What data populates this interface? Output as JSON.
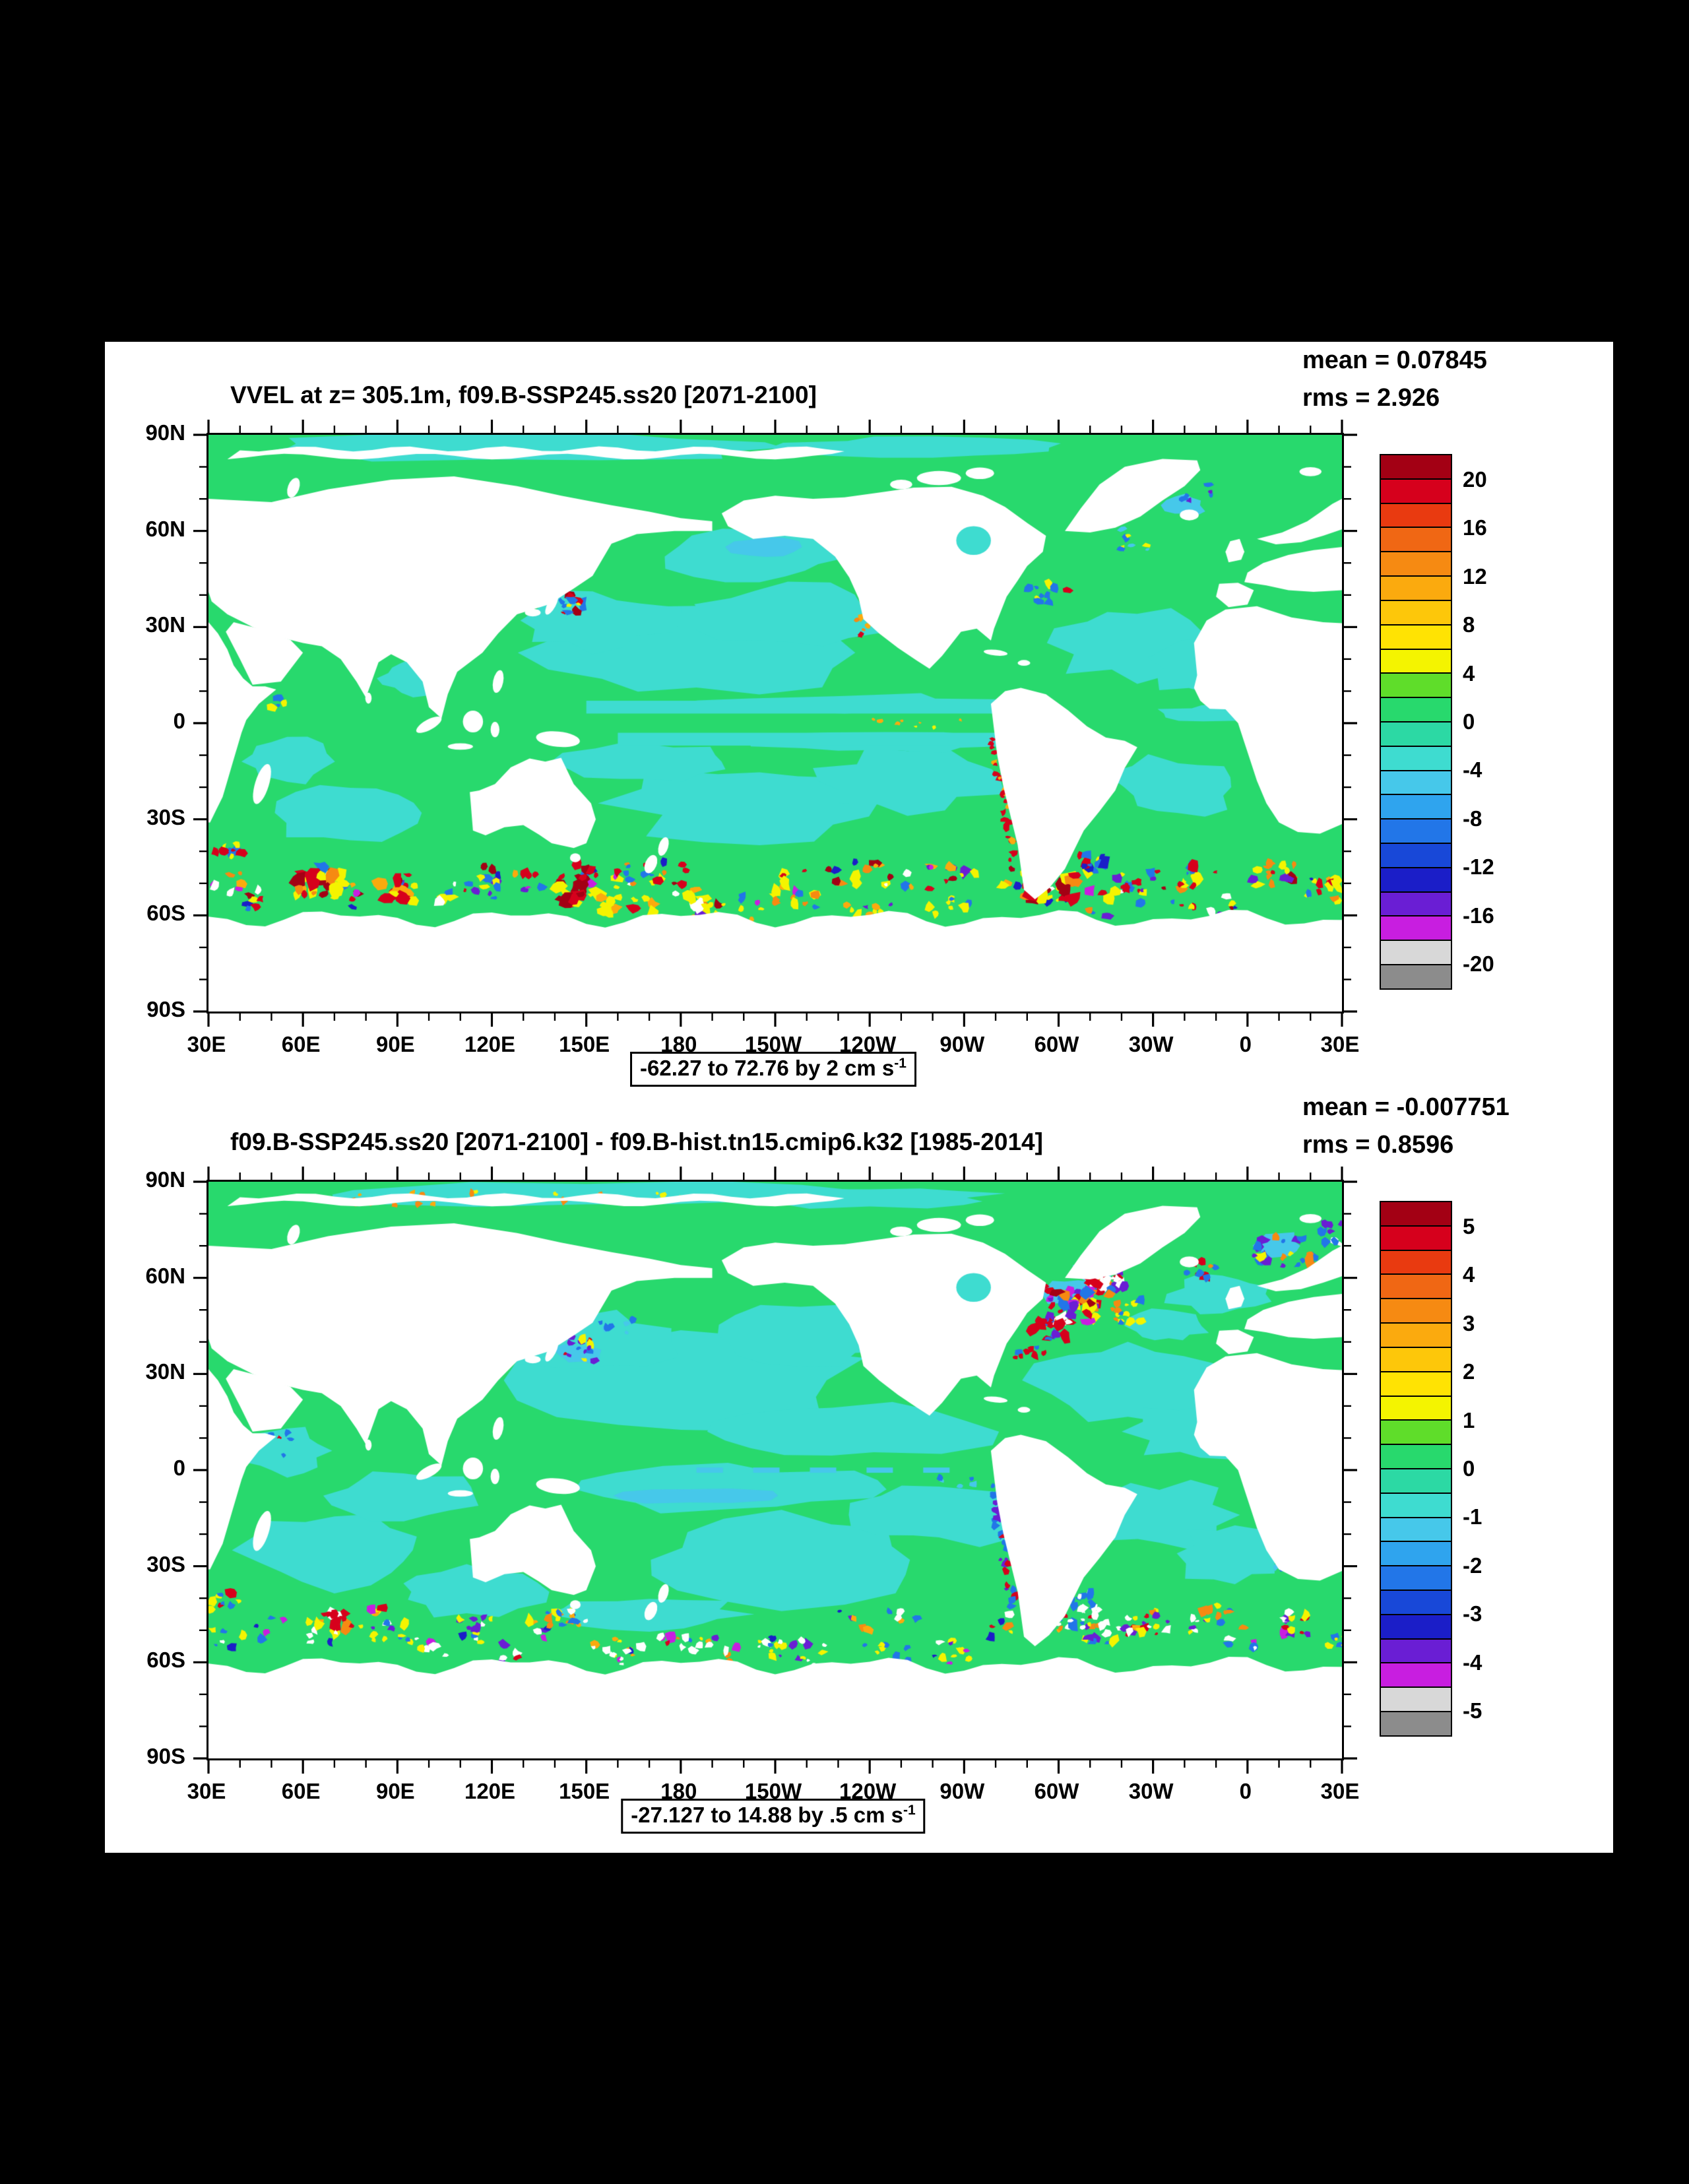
{
  "sheet": {
    "page_background": "#000000",
    "background": "#ffffff"
  },
  "colorbar_colors": [
    "#a30014",
    "#d6001c",
    "#e93a10",
    "#f06714",
    "#f68a12",
    "#fbaa0e",
    "#fdc70a",
    "#ffe303",
    "#f4f400",
    "#5fdd2a",
    "#28d96d",
    "#2cd9a4",
    "#3edcd0",
    "#46c8ea",
    "#2fa4ee",
    "#2276e8",
    "#1848d8",
    "#1b1ec8",
    "#6a1ed4",
    "#c81ee0",
    "#d8d8d8",
    "#8c8c8c"
  ],
  "map_colors": {
    "positive_green": "#28d96d",
    "negative_teal": "#3edcd0",
    "land_mask": "#ffffff"
  },
  "panels": [
    {
      "title": "VVEL at z= 305.1m, f09.B-SSP245.ss20 [2071-2100]",
      "mean_label": "mean = 0.07845",
      "rms_label": "rms = 2.926",
      "caption_text": "-62.27 to 72.76 by 2 cm s",
      "caption_sup": "-1",
      "colorbar_labels": [
        "20",
        "16",
        "12",
        "8",
        "4",
        "0",
        "-4",
        "-8",
        "-12",
        "-16",
        "-20"
      ],
      "y_ticks": [
        "90N",
        "60N",
        "30N",
        "0",
        "30S",
        "60S",
        "90S"
      ],
      "x_ticks": [
        "30E",
        "60E",
        "90E",
        "120E",
        "150E",
        "180",
        "150W",
        "120W",
        "90W",
        "60W",
        "30W",
        "0",
        "30E"
      ]
    },
    {
      "title": "f09.B-SSP245.ss20 [2071-2100] - f09.B-hist.tn15.cmip6.k32 [1985-2014]",
      "mean_label": "mean = -0.007751",
      "rms_label": "rms = 0.8596",
      "caption_text": "-27.127 to 14.88 by .5 cm s",
      "caption_sup": "-1",
      "colorbar_labels": [
        "5",
        "4",
        "3",
        "2",
        "1",
        "0",
        "-1",
        "-2",
        "-3",
        "-4",
        "-5"
      ],
      "y_ticks": [
        "90N",
        "60N",
        "30N",
        "0",
        "30S",
        "60S",
        "90S"
      ],
      "x_ticks": [
        "30E",
        "60E",
        "90E",
        "120E",
        "150E",
        "180",
        "150W",
        "120W",
        "90W",
        "60W",
        "30W",
        "0",
        "30E"
      ]
    }
  ],
  "chart_data": [
    {
      "type": "heatmap",
      "subtype": "global-lat-lon-map",
      "title": "VVEL at z= 305.1m, f09.B-SSP245.ss20 [2071-2100]",
      "variable": "VVEL",
      "depth": "305.1m",
      "units": "cm s-1",
      "stats": {
        "mean": 0.07845,
        "rms": 2.926
      },
      "range": {
        "min": -62.27,
        "max": 72.76,
        "contour_interval": 2
      },
      "caption": "-62.27 to 72.76 by 2 cm s-1",
      "colorbar_ticks": [
        20,
        16,
        12,
        8,
        4,
        0,
        -4,
        -8,
        -12,
        -16,
        -20
      ],
      "lat_ticks": [
        "90N",
        "60N",
        "30N",
        "0",
        "30S",
        "60S",
        "90S"
      ],
      "lon_ticks": [
        "30E",
        "60E",
        "90E",
        "120E",
        "150E",
        "180",
        "150W",
        "120W",
        "90W",
        "60W",
        "30W",
        "0",
        "30E"
      ],
      "legend_position": "right",
      "grid": false,
      "notes": "Ocean vertical velocity: mostly weak positive (green) and weak negative (teal) cells; land and Antarctic ice masked white; strong alternating red/yellow/blue/purple anomalies along the Southern Ocean (40S-60S), western boundary currents (Kuroshio, Gulf Stream, Agulhas, Brazil-Malvinas) and the Chile-Peru coast."
    },
    {
      "type": "heatmap",
      "subtype": "global-lat-lon-map",
      "title": "f09.B-SSP245.ss20 [2071-2100] - f09.B-hist.tn15.cmip6.k32 [1985-2014]",
      "variable": "VVEL difference",
      "depth": "305.1m",
      "units": "cm s-1",
      "stats": {
        "mean": -0.007751,
        "rms": 0.8596
      },
      "range": {
        "min": -27.127,
        "max": 14.88,
        "contour_interval": 0.5
      },
      "caption": "-27.127 to 14.88 by .5 cm s-1",
      "colorbar_ticks": [
        5,
        4,
        3,
        2,
        1,
        0,
        -1,
        -2,
        -3,
        -4,
        -5
      ],
      "lat_ticks": [
        "90N",
        "60N",
        "30N",
        "0",
        "30S",
        "60S",
        "90S"
      ],
      "lon_ticks": [
        "30E",
        "60E",
        "90E",
        "120E",
        "150E",
        "180",
        "150W",
        "120W",
        "90W",
        "60W",
        "30W",
        "0",
        "30E"
      ],
      "legend_position": "right",
      "grid": false,
      "notes": "Future-minus-historical difference: mostly near-zero green/teal; dense mixed red/blue/purple anomalies in the northwest Atlantic and Nordic Seas, along the Kuroshio, and throughout the Southern Ocean storm-track band."
    }
  ]
}
